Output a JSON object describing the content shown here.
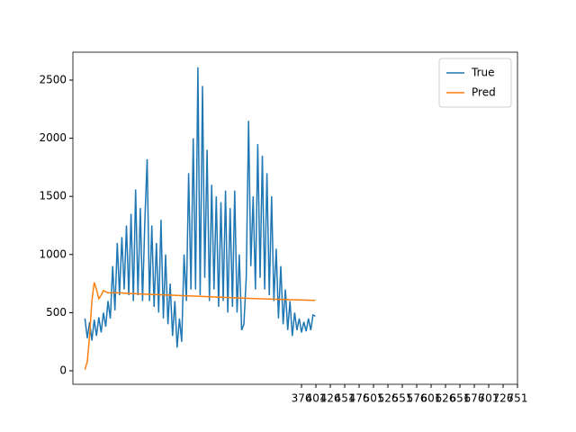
{
  "chart_data": {
    "type": "line",
    "series": [
      {
        "name": "True",
        "color": "#1f77b4",
        "x": [
          0,
          4,
          8,
          12,
          16,
          20,
          24,
          28,
          32,
          36,
          40,
          44,
          48,
          52,
          56,
          60,
          64,
          68,
          72,
          76,
          80,
          84,
          88,
          92,
          96,
          100,
          104,
          108,
          112,
          116,
          120,
          124,
          128,
          132,
          136,
          140,
          144,
          148,
          152,
          156,
          160,
          164,
          168,
          172,
          176,
          180,
          184,
          188,
          192,
          196,
          200,
          204,
          208,
          212,
          216,
          220,
          224,
          228,
          232,
          236,
          240,
          244,
          248,
          252,
          256,
          260,
          264,
          268,
          272,
          276,
          280,
          284,
          288,
          292,
          296,
          300,
          304,
          308,
          312,
          316,
          320,
          324,
          328,
          332,
          336,
          340,
          344,
          348,
          352,
          356,
          360,
          364,
          368,
          372,
          376,
          380,
          384,
          388,
          392,
          396,
          400
        ],
        "values": [
          450,
          280,
          420,
          260,
          440,
          300,
          460,
          330,
          500,
          380,
          600,
          450,
          900,
          520,
          1100,
          650,
          1150,
          700,
          1250,
          650,
          1350,
          600,
          1560,
          650,
          1400,
          600,
          1300,
          1820,
          600,
          1250,
          550,
          1100,
          500,
          1300,
          450,
          1000,
          400,
          750,
          300,
          600,
          200,
          450,
          250,
          1000,
          600,
          1700,
          700,
          2000,
          700,
          2610,
          650,
          2450,
          800,
          1900,
          600,
          1600,
          700,
          1500,
          550,
          1450,
          600,
          1550,
          500,
          1400,
          550,
          1550,
          500,
          1000,
          350,
          400,
          800,
          2150,
          900,
          1500,
          700,
          1950,
          800,
          1850,
          700,
          1700,
          650,
          1500,
          600,
          1050,
          450,
          900,
          400,
          700,
          350,
          600,
          300,
          500,
          350,
          450,
          330,
          420,
          340,
          450,
          350,
          480,
          470
        ]
      },
      {
        "name": "Pred",
        "color": "#ff7f0e",
        "x": [
          0,
          4,
          8,
          12,
          16,
          20,
          24,
          28,
          32,
          36,
          40,
          60,
          80,
          100,
          150,
          200,
          250,
          300,
          350,
          400
        ],
        "values": [
          10,
          80,
          300,
          600,
          760,
          700,
          620,
          650,
          690,
          680,
          670,
          670,
          665,
          660,
          650,
          640,
          630,
          620,
          612,
          605
        ]
      }
    ],
    "xlim": [
      -21,
      751
    ],
    "xticks": [
      376,
      401,
      426,
      451,
      476,
      501,
      526,
      551,
      576,
      601,
      626,
      651,
      676,
      701,
      726,
      751
    ],
    "ylim": [
      -116,
      2740
    ],
    "yticks": [
      0,
      500,
      1000,
      1500,
      2000,
      2500
    ],
    "legend": "upper right"
  }
}
